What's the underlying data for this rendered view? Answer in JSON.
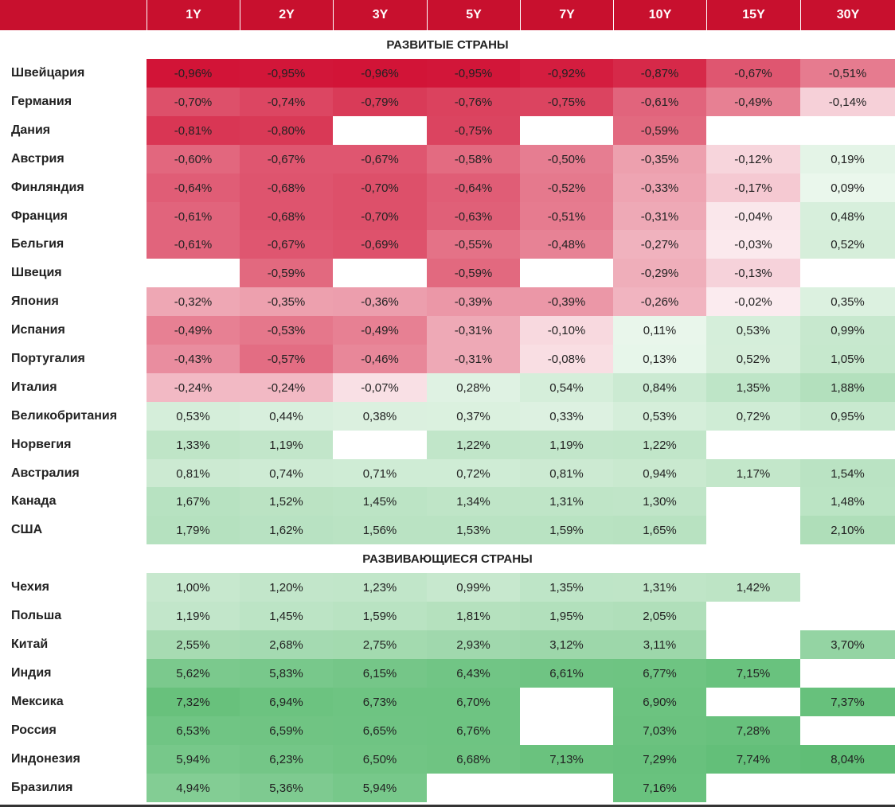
{
  "chart_data": {
    "type": "heatmap",
    "columns": [
      "1Y",
      "2Y",
      "3Y",
      "5Y",
      "7Y",
      "10Y",
      "15Y",
      "30Y"
    ],
    "groups": [
      {
        "title": "РАЗВИТЫЕ СТРАНЫ",
        "rows": [
          {
            "country": "Швейцария",
            "values": [
              "-0,96%",
              "-0,95%",
              "-0,96%",
              "-0,95%",
              "-0,92%",
              "-0,87%",
              "-0,67%",
              "-0,51%"
            ]
          },
          {
            "country": "Германия",
            "values": [
              "-0,70%",
              "-0,74%",
              "-0,79%",
              "-0,76%",
              "-0,75%",
              "-0,61%",
              "-0,49%",
              "-0,14%"
            ]
          },
          {
            "country": "Дания",
            "values": [
              "-0,81%",
              "-0,80%",
              "",
              "-0,75%",
              "",
              "-0,59%",
              "",
              ""
            ]
          },
          {
            "country": "Австрия",
            "values": [
              "-0,60%",
              "-0,67%",
              "-0,67%",
              "-0,58%",
              "-0,50%",
              "-0,35%",
              "-0,12%",
              "0,19%"
            ]
          },
          {
            "country": "Финляндия",
            "values": [
              "-0,64%",
              "-0,68%",
              "-0,70%",
              "-0,64%",
              "-0,52%",
              "-0,33%",
              "-0,17%",
              "0,09%"
            ]
          },
          {
            "country": "Франция",
            "values": [
              "-0,61%",
              "-0,68%",
              "-0,70%",
              "-0,63%",
              "-0,51%",
              "-0,31%",
              "-0,04%",
              "0,48%"
            ]
          },
          {
            "country": "Бельгия",
            "values": [
              "-0,61%",
              "-0,67%",
              "-0,69%",
              "-0,55%",
              "-0,48%",
              "-0,27%",
              "-0,03%",
              "0,52%"
            ]
          },
          {
            "country": "Швеция",
            "values": [
              "",
              "-0,59%",
              "",
              "-0,59%",
              "",
              "-0,29%",
              "-0,13%",
              ""
            ]
          },
          {
            "country": "Япония",
            "values": [
              "-0,32%",
              "-0,35%",
              "-0,36%",
              "-0,39%",
              "-0,39%",
              "-0,26%",
              "-0,02%",
              "0,35%"
            ]
          },
          {
            "country": "Испания",
            "values": [
              "-0,49%",
              "-0,53%",
              "-0,49%",
              "-0,31%",
              "-0,10%",
              "0,11%",
              "0,53%",
              "0,99%"
            ]
          },
          {
            "country": "Португалия",
            "values": [
              "-0,43%",
              "-0,57%",
              "-0,46%",
              "-0,31%",
              "-0,08%",
              "0,13%",
              "0,52%",
              "1,05%"
            ]
          },
          {
            "country": "Италия",
            "values": [
              "-0,24%",
              "-0,24%",
              "-0,07%",
              "0,28%",
              "0,54%",
              "0,84%",
              "1,35%",
              "1,88%"
            ]
          },
          {
            "country": "Великобритания",
            "values": [
              "0,53%",
              "0,44%",
              "0,38%",
              "0,37%",
              "0,33%",
              "0,53%",
              "0,72%",
              "0,95%"
            ]
          },
          {
            "country": "Норвегия",
            "values": [
              "1,33%",
              "1,19%",
              "",
              "1,22%",
              "1,19%",
              "1,22%",
              "",
              ""
            ]
          },
          {
            "country": "Австралия",
            "values": [
              "0,81%",
              "0,74%",
              "0,71%",
              "0,72%",
              "0,81%",
              "0,94%",
              "1,17%",
              "1,54%"
            ]
          },
          {
            "country": "Канада",
            "values": [
              "1,67%",
              "1,52%",
              "1,45%",
              "1,34%",
              "1,31%",
              "1,30%",
              "",
              "1,48%"
            ]
          },
          {
            "country": "США",
            "values": [
              "1,79%",
              "1,62%",
              "1,56%",
              "1,53%",
              "1,59%",
              "1,65%",
              "",
              "2,10%"
            ]
          }
        ]
      },
      {
        "title": "РАЗВИВАЮЩИЕСЯ СТРАНЫ",
        "rows": [
          {
            "country": "Чехия",
            "values": [
              "1,00%",
              "1,20%",
              "1,23%",
              "0,99%",
              "1,35%",
              "1,31%",
              "1,42%",
              ""
            ]
          },
          {
            "country": "Польша",
            "values": [
              "1,19%",
              "1,45%",
              "1,59%",
              "1,81%",
              "1,95%",
              "2,05%",
              "",
              ""
            ]
          },
          {
            "country": "Китай",
            "values": [
              "2,55%",
              "2,68%",
              "2,75%",
              "2,93%",
              "3,12%",
              "3,11%",
              "",
              "3,70%"
            ]
          },
          {
            "country": "Индия",
            "values": [
              "5,62%",
              "5,83%",
              "6,15%",
              "6,43%",
              "6,61%",
              "6,77%",
              "7,15%",
              ""
            ]
          },
          {
            "country": "Мексика",
            "values": [
              "7,32%",
              "6,94%",
              "6,73%",
              "6,70%",
              "",
              "6,90%",
              "",
              "7,37%"
            ]
          },
          {
            "country": "Россия",
            "values": [
              "6,53%",
              "6,59%",
              "6,65%",
              "6,76%",
              "",
              "7,03%",
              "7,28%",
              ""
            ]
          },
          {
            "country": "Индонезия",
            "values": [
              "5,94%",
              "6,23%",
              "6,50%",
              "6,68%",
              "7,13%",
              "7,29%",
              "7,74%",
              "8,04%"
            ]
          },
          {
            "country": "Бразилия",
            "values": [
              "4,94%",
              "5,36%",
              "5,94%",
              "",
              "",
              "7,16%",
              "",
              ""
            ]
          }
        ]
      }
    ]
  }
}
